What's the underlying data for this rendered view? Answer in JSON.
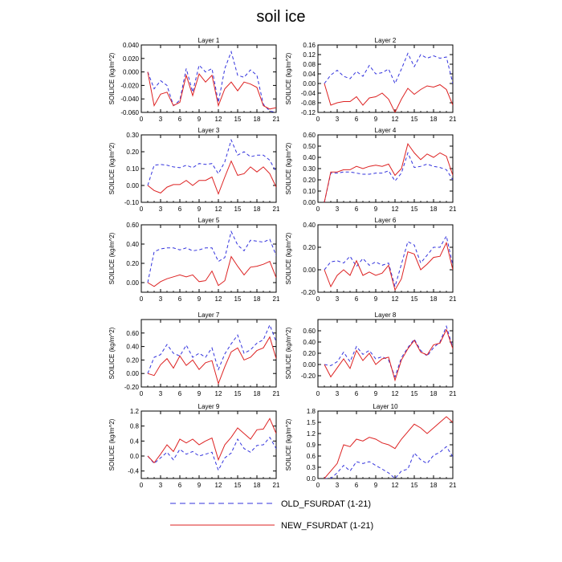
{
  "title": "soil ice",
  "legend": [
    {
      "name": "OLD_FSURDAT (1-21)",
      "color": "#3333dd",
      "dash": "dashed"
    },
    {
      "name": "NEW_FSURDAT (1-21)",
      "color": "#dd2222",
      "dash": "solid"
    }
  ],
  "chart_data": [
    {
      "type": "line",
      "title": "Layer 1",
      "ylabel": "SOILICE  (kg/m^2)",
      "x": [
        1,
        2,
        3,
        4,
        5,
        6,
        7,
        8,
        9,
        10,
        11,
        12,
        13,
        14,
        15,
        16,
        17,
        18,
        19,
        20,
        21
      ],
      "xlim": [
        0,
        21
      ],
      "xticks": [
        0,
        3,
        6,
        9,
        12,
        15,
        18,
        21
      ],
      "xtick_labels": [
        "0",
        "3",
        "6",
        "9",
        "12",
        "15",
        "18",
        "21"
      ],
      "ylim": [
        -0.06,
        0.04
      ],
      "yticks": [
        -0.06,
        -0.04,
        -0.02,
        0.0,
        0.02,
        0.04
      ],
      "ytick_labels": [
        "-0.060",
        "-0.040",
        "-0.020",
        "0.000",
        "0.020",
        "0.040"
      ],
      "series": [
        {
          "name": "OLD_FSURDAT (1-21)",
          "values": [
            0.0,
            -0.025,
            -0.013,
            -0.02,
            -0.05,
            -0.042,
            0.005,
            -0.03,
            0.01,
            0.0,
            0.005,
            -0.045,
            0.005,
            0.03,
            -0.005,
            -0.008,
            0.003,
            -0.005,
            -0.048,
            -0.058,
            -0.06
          ]
        },
        {
          "name": "NEW_FSURDAT (1-21)",
          "values": [
            0.0,
            -0.05,
            -0.033,
            -0.03,
            -0.05,
            -0.045,
            -0.005,
            -0.035,
            -0.003,
            -0.015,
            -0.005,
            -0.05,
            -0.025,
            -0.015,
            -0.028,
            -0.015,
            -0.018,
            -0.023,
            -0.05,
            -0.055,
            -0.053
          ]
        }
      ]
    },
    {
      "type": "line",
      "title": "Layer 2",
      "ylabel": "SOILICE  (kg/m^2)",
      "x": [
        1,
        2,
        3,
        4,
        5,
        6,
        7,
        8,
        9,
        10,
        11,
        12,
        13,
        14,
        15,
        16,
        17,
        18,
        19,
        20,
        21
      ],
      "xlim": [
        0,
        21
      ],
      "xticks": [
        0,
        3,
        6,
        9,
        12,
        15,
        18,
        21
      ],
      "xtick_labels": [
        "0",
        "3",
        "6",
        "9",
        "12",
        "15",
        "18",
        "21"
      ],
      "ylim": [
        -0.12,
        0.16
      ],
      "yticks": [
        -0.12,
        -0.08,
        -0.04,
        0.0,
        0.04,
        0.08,
        0.12,
        0.16
      ],
      "ytick_labels": [
        "-0.12",
        "-0.08",
        "-0.04",
        "0.00",
        "0.04",
        "0.08",
        "0.12",
        "0.16"
      ],
      "series": [
        {
          "name": "OLD_FSURDAT (1-21)",
          "values": [
            0.0,
            0.035,
            0.055,
            0.03,
            0.02,
            0.05,
            0.03,
            0.075,
            0.04,
            0.045,
            0.06,
            0.0,
            0.06,
            0.125,
            0.07,
            0.12,
            0.105,
            0.115,
            0.105,
            0.11,
            0.0
          ]
        },
        {
          "name": "NEW_FSURDAT (1-21)",
          "values": [
            0.0,
            -0.09,
            -0.08,
            -0.075,
            -0.075,
            -0.055,
            -0.09,
            -0.06,
            -0.055,
            -0.04,
            -0.065,
            -0.12,
            -0.065,
            -0.02,
            -0.045,
            -0.025,
            -0.01,
            -0.015,
            -0.005,
            -0.025,
            -0.09
          ]
        }
      ]
    },
    {
      "type": "line",
      "title": "Layer 3",
      "ylabel": "SOILICE  (kg/m^2)",
      "x": [
        1,
        2,
        3,
        4,
        5,
        6,
        7,
        8,
        9,
        10,
        11,
        12,
        13,
        14,
        15,
        16,
        17,
        18,
        19,
        20,
        21
      ],
      "xlim": [
        0,
        21
      ],
      "xticks": [
        0,
        3,
        6,
        9,
        12,
        15,
        18,
        21
      ],
      "xtick_labels": [
        "0",
        "3",
        "6",
        "9",
        "12",
        "15",
        "18",
        "21"
      ],
      "ylim": [
        -0.1,
        0.3
      ],
      "yticks": [
        -0.1,
        0.0,
        0.1,
        0.2,
        0.3
      ],
      "ytick_labels": [
        "-0.10",
        "0.00",
        "0.10",
        "0.20",
        "0.30"
      ],
      "series": [
        {
          "name": "OLD_FSURDAT (1-21)",
          "values": [
            0.0,
            0.12,
            0.125,
            0.12,
            0.11,
            0.105,
            0.12,
            0.105,
            0.13,
            0.125,
            0.13,
            0.07,
            0.14,
            0.27,
            0.18,
            0.2,
            0.17,
            0.18,
            0.18,
            0.15,
            0.08
          ]
        },
        {
          "name": "NEW_FSURDAT (1-21)",
          "values": [
            0.0,
            -0.03,
            -0.045,
            -0.01,
            0.005,
            0.005,
            0.03,
            0.0,
            0.03,
            0.03,
            0.05,
            -0.05,
            0.05,
            0.145,
            0.06,
            0.07,
            0.11,
            0.08,
            0.11,
            0.07,
            -0.01
          ]
        }
      ]
    },
    {
      "type": "line",
      "title": "Layer 4",
      "ylabel": "SOILICE  (kg/m^2)",
      "x": [
        1,
        2,
        3,
        4,
        5,
        6,
        7,
        8,
        9,
        10,
        11,
        12,
        13,
        14,
        15,
        16,
        17,
        18,
        19,
        20,
        21
      ],
      "xlim": [
        0,
        21
      ],
      "xticks": [
        0,
        3,
        6,
        9,
        12,
        15,
        18,
        21
      ],
      "xtick_labels": [
        "0",
        "3",
        "6",
        "9",
        "12",
        "15",
        "18",
        "21"
      ],
      "ylim": [
        0.0,
        0.6
      ],
      "yticks": [
        0.0,
        0.1,
        0.2,
        0.3,
        0.4,
        0.5,
        0.6
      ],
      "ytick_labels": [
        "0.00",
        "0.10",
        "0.20",
        "0.30",
        "0.40",
        "0.50",
        "0.60"
      ],
      "series": [
        {
          "name": "OLD_FSURDAT (1-21)",
          "values": [
            0.0,
            0.26,
            0.26,
            0.27,
            0.27,
            0.26,
            0.25,
            0.25,
            0.26,
            0.26,
            0.28,
            0.19,
            0.26,
            0.44,
            0.31,
            0.32,
            0.34,
            0.32,
            0.31,
            0.29,
            0.2
          ]
        },
        {
          "name": "NEW_FSURDAT (1-21)",
          "values": [
            0.0,
            0.27,
            0.27,
            0.29,
            0.29,
            0.32,
            0.3,
            0.32,
            0.33,
            0.32,
            0.34,
            0.24,
            0.3,
            0.52,
            0.44,
            0.38,
            0.43,
            0.4,
            0.44,
            0.41,
            0.24
          ]
        }
      ]
    },
    {
      "type": "line",
      "title": "Layer 5",
      "ylabel": "SOILICE  (kg/m^2)",
      "x": [
        1,
        2,
        3,
        4,
        5,
        6,
        7,
        8,
        9,
        10,
        11,
        12,
        13,
        14,
        15,
        16,
        17,
        18,
        19,
        20,
        21
      ],
      "xlim": [
        0,
        21
      ],
      "xticks": [
        0,
        3,
        6,
        9,
        12,
        15,
        18,
        21
      ],
      "xtick_labels": [
        "0",
        "3",
        "6",
        "9",
        "12",
        "15",
        "18",
        "21"
      ],
      "ylim": [
        -0.1,
        0.6
      ],
      "yticks": [
        0.0,
        0.2,
        0.4,
        0.6
      ],
      "ytick_labels": [
        "0.00",
        "0.20",
        "0.40",
        "0.60"
      ],
      "series": [
        {
          "name": "OLD_FSURDAT (1-21)",
          "values": [
            0.0,
            0.32,
            0.35,
            0.36,
            0.36,
            0.34,
            0.36,
            0.33,
            0.34,
            0.36,
            0.36,
            0.22,
            0.26,
            0.53,
            0.39,
            0.33,
            0.44,
            0.43,
            0.42,
            0.45,
            0.28
          ]
        },
        {
          "name": "NEW_FSURDAT (1-21)",
          "values": [
            0.0,
            -0.04,
            0.01,
            0.04,
            0.06,
            0.08,
            0.06,
            0.08,
            0.01,
            0.02,
            0.12,
            -0.03,
            0.02,
            0.27,
            0.17,
            0.08,
            0.16,
            0.17,
            0.19,
            0.22,
            0.05
          ]
        }
      ]
    },
    {
      "type": "line",
      "title": "Layer 6",
      "ylabel": "SOILICE  (kg/m^2)",
      "x": [
        1,
        2,
        3,
        4,
        5,
        6,
        7,
        8,
        9,
        10,
        11,
        12,
        13,
        14,
        15,
        16,
        17,
        18,
        19,
        20,
        21
      ],
      "xlim": [
        0,
        21
      ],
      "xticks": [
        0,
        3,
        6,
        9,
        12,
        15,
        18,
        21
      ],
      "xtick_labels": [
        "0",
        "3",
        "6",
        "9",
        "12",
        "15",
        "18",
        "21"
      ],
      "ylim": [
        -0.2,
        0.4
      ],
      "yticks": [
        -0.2,
        0.0,
        0.2,
        0.4
      ],
      "ytick_labels": [
        "-0.20",
        "0.00",
        "0.20",
        "0.40"
      ],
      "series": [
        {
          "name": "OLD_FSURDAT (1-21)",
          "values": [
            0.0,
            0.07,
            0.08,
            0.06,
            0.12,
            0.03,
            0.1,
            0.04,
            0.07,
            0.04,
            0.06,
            -0.15,
            0.05,
            0.25,
            0.22,
            0.06,
            0.13,
            0.2,
            0.2,
            0.3,
            0.04
          ]
        },
        {
          "name": "NEW_FSURDAT (1-21)",
          "values": [
            0.0,
            -0.15,
            -0.05,
            0.0,
            -0.05,
            0.08,
            -0.05,
            -0.02,
            -0.05,
            -0.03,
            0.04,
            -0.18,
            -0.08,
            0.16,
            0.14,
            0.0,
            0.05,
            0.11,
            0.12,
            0.24,
            0.0
          ]
        }
      ]
    },
    {
      "type": "line",
      "title": "Layer 7",
      "ylabel": "SOILICE  (kg/m^2)",
      "x": [
        1,
        2,
        3,
        4,
        5,
        6,
        7,
        8,
        9,
        10,
        11,
        12,
        13,
        14,
        15,
        16,
        17,
        18,
        19,
        20,
        21
      ],
      "xlim": [
        0,
        21
      ],
      "xticks": [
        0,
        3,
        6,
        9,
        12,
        15,
        18,
        21
      ],
      "xtick_labels": [
        "0",
        "3",
        "6",
        "9",
        "12",
        "15",
        "18",
        "21"
      ],
      "ylim": [
        -0.2,
        0.8
      ],
      "yticks": [
        -0.2,
        0.0,
        0.2,
        0.4,
        0.6
      ],
      "ytick_labels": [
        "-0.20",
        "0.00",
        "0.20",
        "0.40",
        "0.60"
      ],
      "series": [
        {
          "name": "OLD_FSURDAT (1-21)",
          "values": [
            0.0,
            0.24,
            0.28,
            0.43,
            0.3,
            0.26,
            0.42,
            0.24,
            0.3,
            0.24,
            0.38,
            0.06,
            0.29,
            0.44,
            0.57,
            0.3,
            0.35,
            0.45,
            0.5,
            0.72,
            0.47
          ]
        },
        {
          "name": "NEW_FSURDAT (1-21)",
          "values": [
            0.0,
            -0.03,
            0.13,
            0.22,
            0.08,
            0.26,
            0.12,
            0.2,
            0.06,
            0.16,
            0.19,
            -0.15,
            0.1,
            0.32,
            0.38,
            0.2,
            0.24,
            0.34,
            0.38,
            0.54,
            0.22
          ]
        }
      ]
    },
    {
      "type": "line",
      "title": "Layer 8",
      "ylabel": "SOILICE  (kg/m^2)",
      "x": [
        1,
        2,
        3,
        4,
        5,
        6,
        7,
        8,
        9,
        10,
        11,
        12,
        13,
        14,
        15,
        16,
        17,
        18,
        19,
        20,
        21
      ],
      "xlim": [
        0,
        21
      ],
      "xticks": [
        0,
        3,
        6,
        9,
        12,
        15,
        18,
        21
      ],
      "xtick_labels": [
        "0",
        "3",
        "6",
        "9",
        "12",
        "15",
        "18",
        "21"
      ],
      "ylim": [
        -0.4,
        0.8
      ],
      "yticks": [
        -0.4,
        -0.2,
        0.0,
        0.2,
        0.4,
        0.6
      ],
      "ytick_labels": [
        "",
        "-0.20",
        "0.00",
        "0.20",
        "0.40",
        "0.60"
      ],
      "series": [
        {
          "name": "OLD_FSURDAT (1-21)",
          "values": [
            0.0,
            -0.02,
            0.05,
            0.22,
            0.05,
            0.32,
            0.18,
            0.25,
            0.1,
            0.14,
            0.08,
            -0.22,
            0.12,
            0.3,
            0.45,
            0.25,
            0.15,
            0.3,
            0.4,
            0.68,
            0.3
          ]
        },
        {
          "name": "NEW_FSURDAT (1-21)",
          "values": [
            0.0,
            -0.22,
            -0.06,
            0.1,
            -0.07,
            0.25,
            0.07,
            0.2,
            0.0,
            0.1,
            0.13,
            -0.28,
            0.08,
            0.28,
            0.43,
            0.22,
            0.17,
            0.35,
            0.38,
            0.62,
            0.28
          ]
        }
      ]
    },
    {
      "type": "line",
      "title": "Layer 9",
      "ylabel": "SOILICE  (kg/m^2)",
      "x": [
        1,
        2,
        3,
        4,
        5,
        6,
        7,
        8,
        9,
        10,
        11,
        12,
        13,
        14,
        15,
        16,
        17,
        18,
        19,
        20,
        21
      ],
      "xlim": [
        0,
        21
      ],
      "xticks": [
        0,
        3,
        6,
        9,
        12,
        15,
        18,
        21
      ],
      "xtick_labels": [
        "0",
        "3",
        "6",
        "9",
        "12",
        "15",
        "18",
        "21"
      ],
      "ylim": [
        -0.6,
        1.2
      ],
      "yticks": [
        -0.4,
        0.0,
        0.4,
        0.8,
        1.2
      ],
      "ytick_labels": [
        "-0.4",
        "0.0",
        "0.4",
        "0.8",
        "1.2"
      ],
      "series": [
        {
          "name": "OLD_FSURDAT (1-21)",
          "values": [
            0.0,
            -0.2,
            -0.05,
            0.1,
            -0.1,
            0.18,
            0.05,
            0.12,
            0.0,
            0.05,
            0.1,
            -0.38,
            -0.05,
            0.08,
            0.45,
            0.2,
            0.1,
            0.28,
            0.3,
            0.5,
            0.2
          ]
        },
        {
          "name": "NEW_FSURDAT (1-21)",
          "values": [
            0.0,
            -0.18,
            0.05,
            0.3,
            0.12,
            0.45,
            0.35,
            0.45,
            0.3,
            0.4,
            0.48,
            -0.1,
            0.3,
            0.5,
            0.75,
            0.6,
            0.45,
            0.7,
            0.72,
            1.0,
            0.6
          ]
        }
      ]
    },
    {
      "type": "line",
      "title": "Layer 10",
      "ylabel": "SOILICE  (kg/m^2)",
      "x": [
        1,
        2,
        3,
        4,
        5,
        6,
        7,
        8,
        9,
        10,
        11,
        12,
        13,
        14,
        15,
        16,
        17,
        18,
        19,
        20,
        21
      ],
      "xlim": [
        0,
        21
      ],
      "xticks": [
        0,
        3,
        6,
        9,
        12,
        15,
        18,
        21
      ],
      "xtick_labels": [
        "0",
        "3",
        "6",
        "9",
        "12",
        "15",
        "18",
        "21"
      ],
      "ylim": [
        0.0,
        1.8
      ],
      "yticks": [
        0.0,
        0.3,
        0.6,
        0.9,
        1.2,
        1.5,
        1.8
      ],
      "ytick_labels": [
        "0.0",
        "0.3",
        "0.6",
        "0.9",
        "1.2",
        "1.5",
        "1.8"
      ],
      "series": [
        {
          "name": "OLD_FSURDAT (1-21)",
          "values": [
            0.0,
            0.0,
            0.15,
            0.35,
            0.2,
            0.45,
            0.4,
            0.45,
            0.35,
            0.25,
            0.15,
            0.0,
            0.2,
            0.25,
            0.68,
            0.5,
            0.4,
            0.62,
            0.7,
            0.85,
            0.58
          ]
        },
        {
          "name": "NEW_FSURDAT (1-21)",
          "values": [
            0.0,
            0.2,
            0.4,
            0.9,
            0.85,
            1.05,
            1.0,
            1.1,
            1.05,
            0.95,
            0.9,
            0.8,
            1.05,
            1.25,
            1.45,
            1.35,
            1.2,
            1.35,
            1.5,
            1.65,
            1.5
          ]
        }
      ]
    }
  ]
}
